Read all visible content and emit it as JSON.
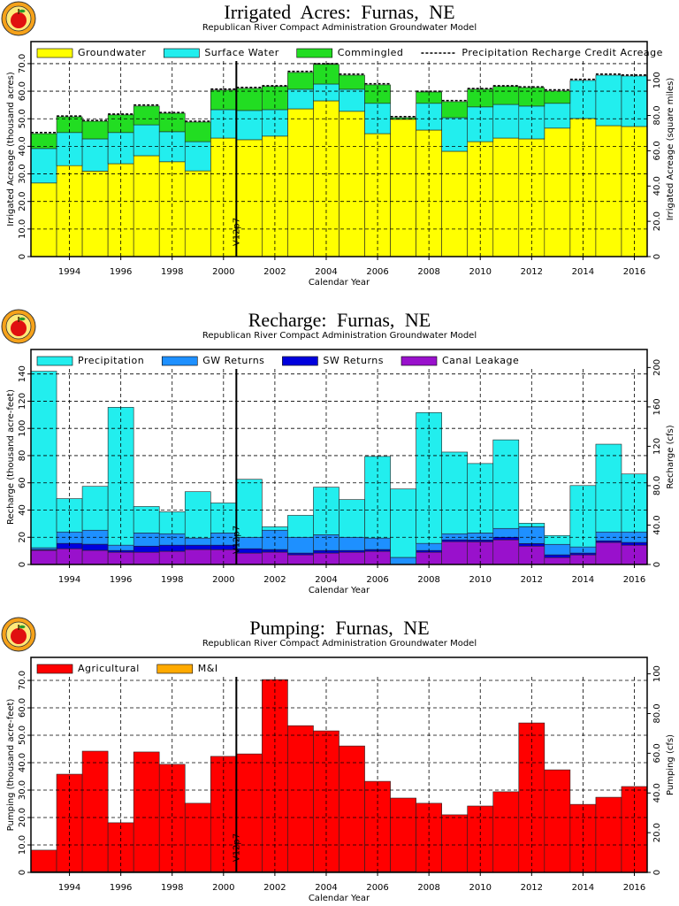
{
  "chart_data": [
    {
      "type": "bar",
      "stacked": true,
      "stack_order": "forward",
      "title": "Irrigated Acres: Furnas, NE",
      "subtitle": "Republican River Compact Administration Groundwater Model",
      "x_label": "Calendar Year",
      "y_label": "Irrigated Acreage (thousand acres)",
      "y2_label": "Irrigated Acreage (square miles)",
      "x": [
        1993,
        1994,
        1995,
        1996,
        1997,
        1998,
        1999,
        2000,
        2001,
        2002,
        2003,
        2004,
        2005,
        2006,
        2007,
        2008,
        2009,
        2010,
        2011,
        2012,
        2013,
        2014,
        2015,
        2016
      ],
      "xlim": [
        1992.5,
        2016.5
      ],
      "xticks": [
        1994,
        1996,
        1998,
        2000,
        2002,
        2004,
        2006,
        2008,
        2010,
        2012,
        2014,
        2016
      ],
      "ylim": [
        0,
        78
      ],
      "yticks": [
        0,
        {
          "value": 10,
          "label": "10.0"
        },
        {
          "value": 20,
          "label": "20.0"
        },
        {
          "value": 30,
          "label": "30.0"
        },
        {
          "value": 40,
          "label": "40.0"
        },
        {
          "value": 50,
          "label": "50.0"
        },
        {
          "value": 60,
          "label": "60.0"
        },
        {
          "value": 70,
          "label": "70.0"
        }
      ],
      "y2lim": [
        0,
        121.9
      ],
      "y2ticks": [
        0,
        {
          "value": 20,
          "label": "20.0"
        },
        {
          "value": 40,
          "label": "40.0"
        },
        {
          "value": 60,
          "label": "60.0"
        },
        {
          "value": 80,
          "label": "80.0"
        },
        100
      ],
      "grid": true,
      "vline": {
        "x": 2000.5,
        "label": "V12p7"
      },
      "series": [
        {
          "name": "Groundwater",
          "color": "#ffff00",
          "values": [
            26.7,
            33,
            31,
            33.7,
            36.6,
            34.4,
            31.1,
            43,
            42.4,
            43.7,
            53.6,
            56.5,
            52.7,
            44.6,
            49.8,
            45.9,
            38.2,
            41.7,
            43,
            42.7,
            46.6,
            50.1,
            47.5,
            47.2
          ]
        },
        {
          "name": "Surface Water",
          "color": "#22eeee",
          "values": [
            12.5,
            12,
            11.7,
            11.3,
            11.2,
            10.9,
            10.6,
            10.3,
            10.6,
            9.6,
            7.1,
            6.1,
            8,
            11,
            0,
            9.7,
            12.2,
            12.6,
            12.2,
            11.9,
            9,
            13.8,
            18.3,
            18.3
          ]
        },
        {
          "name": "Commingled",
          "color": "#22dd22",
          "values": [
            5.4,
            5.7,
            6.4,
            6.4,
            6.8,
            6.7,
            7.1,
            7.1,
            8,
            8.4,
            6.1,
            7.1,
            5.1,
            6.7,
            0.6,
            4.1,
            5.8,
            6.4,
            6.5,
            6.7,
            4.5,
            0,
            0,
            0
          ]
        },
        {
          "name": "Precipitation Recharge Credit Acreage",
          "type": "line",
          "color": "#000000",
          "values": [
            45,
            51,
            49.4,
            51.7,
            55,
            52.3,
            49.1,
            60.8,
            61.4,
            62,
            67.2,
            70,
            66.2,
            62.7,
            50.8,
            60,
            56.6,
            61,
            62,
            61.6,
            60.5,
            64.3,
            66.2,
            65.9
          ]
        }
      ]
    },
    {
      "type": "bar",
      "stacked": true,
      "stack_order": "reverse",
      "title": "Recharge: Furnas, NE",
      "subtitle": "Republican River Compact Administration Groundwater Model",
      "x_label": "Calendar Year",
      "y_label": "Recharge (thousand acre-feet)",
      "y2_label": "Recharge (cfs)",
      "x": [
        1993,
        1994,
        1995,
        1996,
        1997,
        1998,
        1999,
        2000,
        2001,
        2002,
        2003,
        2004,
        2005,
        2006,
        2007,
        2008,
        2009,
        2010,
        2011,
        2012,
        2013,
        2014,
        2015,
        2016
      ],
      "xlim": [
        1992.5,
        2016.5
      ],
      "xticks": [
        1994,
        1996,
        1998,
        2000,
        2002,
        2004,
        2006,
        2008,
        2010,
        2012,
        2014,
        2016
      ],
      "ylim": [
        0,
        158
      ],
      "yticks": [
        0,
        20,
        40,
        60,
        80,
        100,
        120,
        140
      ],
      "y2lim": [
        0,
        218.3
      ],
      "y2ticks": [
        0,
        {
          "value": 40,
          "label": "40.0"
        },
        {
          "value": 80,
          "label": "80.0"
        },
        120,
        160,
        200
      ],
      "grid": true,
      "vline": {
        "x": 2000.5,
        "label": "V12p7"
      },
      "series": [
        {
          "name": "Precipitation",
          "color": "#22eeee",
          "values": [
            129.7,
            24.5,
            32.2,
            101.3,
            19.4,
            16.1,
            34.1,
            22,
            42.6,
            2.5,
            16.1,
            34.9,
            27.7,
            60,
            50.3,
            96.1,
            60,
            51,
            65.1,
            2.6,
            6.5,
            45.1,
            64.5,
            42.6
          ]
        },
        {
          "name": "GW Returns",
          "color": "#1e90ff",
          "values": [
            1.3,
            8.4,
            10.3,
            3.9,
            9.7,
            8.4,
            5.2,
            9,
            8.4,
            14.2,
            11.6,
            11.6,
            9.7,
            8.4,
            5.2,
            5.2,
            4.5,
            5.2,
            6.5,
            12.3,
            7.7,
            4.5,
            6.5,
            7.7
          ]
        },
        {
          "name": "SW Returns",
          "color": "#0000dd",
          "values": [
            0.6,
            3.9,
            4.5,
            1.3,
            4.5,
            4.5,
            3.2,
            3.3,
            3.2,
            1.9,
            1.3,
            1.9,
            1.3,
            1.3,
            0,
            1.3,
            1.3,
            1.3,
            1.9,
            1.9,
            2,
            1.3,
            1.2,
            2
          ]
        },
        {
          "name": "Canal Leakage",
          "color": "#9911cc",
          "values": [
            10.4,
            11.6,
            10.4,
            9,
            9,
            9.7,
            11,
            10.9,
            8.4,
            9.1,
            7.1,
            8.4,
            9,
            9.7,
            0,
            9,
            16.8,
            16.7,
            18.1,
            13.5,
            5.1,
            7.1,
            16.2,
            14.2
          ]
        }
      ]
    },
    {
      "type": "bar",
      "stacked": true,
      "stack_order": "reverse",
      "title": "Pumping: Furnas, NE",
      "subtitle": "Republican River Compact Administration Groundwater Model",
      "x_label": "Calendar Year",
      "y_label": "Pumping (thousand acre-feet)",
      "y2_label": "Pumping (cfs)",
      "x": [
        1993,
        1994,
        1995,
        1996,
        1997,
        1998,
        1999,
        2000,
        2001,
        2002,
        2003,
        2004,
        2005,
        2006,
        2007,
        2008,
        2009,
        2010,
        2011,
        2012,
        2013,
        2014,
        2015,
        2016
      ],
      "xlim": [
        1992.5,
        2016.5
      ],
      "xticks": [
        1994,
        1996,
        1998,
        2000,
        2002,
        2004,
        2006,
        2008,
        2010,
        2012,
        2014,
        2016
      ],
      "ylim": [
        0,
        78.4
      ],
      "yticks": [
        0,
        {
          "value": 10,
          "label": "10.0"
        },
        {
          "value": 20,
          "label": "20.0"
        },
        {
          "value": 30,
          "label": "30.0"
        },
        {
          "value": 40,
          "label": "40.0"
        },
        {
          "value": 50,
          "label": "50.0"
        },
        {
          "value": 60,
          "label": "60.0"
        },
        {
          "value": 70,
          "label": "70.0"
        }
      ],
      "y2lim": [
        0,
        108.3
      ],
      "y2ticks": [
        0,
        {
          "value": 20,
          "label": "20.0"
        },
        {
          "value": 40,
          "label": "40.0"
        },
        {
          "value": 60,
          "label": "60.0"
        },
        {
          "value": 80,
          "label": "80.0"
        },
        100
      ],
      "grid": true,
      "vline": {
        "x": 2000.5,
        "label": "V12p7"
      },
      "series": [
        {
          "name": "Agricultural",
          "color": "#ff0000",
          "values": [
            7.8,
            35.5,
            43.9,
            17.8,
            43.6,
            39.1,
            24.9,
            42,
            42.9,
            70,
            53.2,
            51.3,
            45.8,
            32.9,
            26.8,
            25.2,
            21,
            24.2,
            29.4,
            54.5,
            37.4,
            24.8,
            27.4,
            31.3
          ]
        },
        {
          "name": "M&I",
          "color": "#ffaa00",
          "values": [
            0.3,
            0.3,
            0.3,
            0.3,
            0.3,
            0.3,
            0.3,
            0.3,
            0.3,
            0.3,
            0.3,
            0.3,
            0.3,
            0.3,
            0.3,
            0,
            0,
            0,
            0,
            0,
            0,
            0,
            0,
            0
          ]
        }
      ]
    }
  ]
}
